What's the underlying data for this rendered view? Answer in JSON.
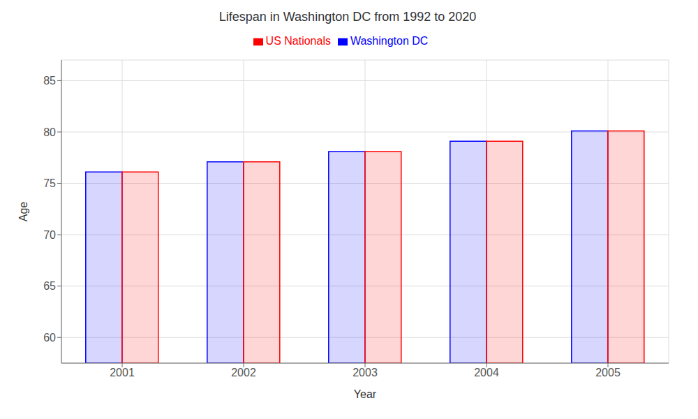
{
  "chart_data": {
    "type": "bar",
    "title": "Lifespan in Washington DC from 1992 to 2020",
    "x_label": "Year",
    "y_label": "Age",
    "categories": [
      "2001",
      "2002",
      "2003",
      "2004",
      "2005"
    ],
    "series": [
      {
        "name": "Washington DC",
        "color": "#0000ff",
        "values": [
          76.1,
          77.1,
          78.1,
          79.1,
          80.1
        ]
      },
      {
        "name": "US Nationals",
        "color": "#ff0000",
        "values": [
          76.1,
          77.1,
          78.1,
          79.1,
          80.1
        ]
      }
    ],
    "ylim": [
      57.5,
      87
    ],
    "yticks": [
      60,
      65,
      70,
      75,
      80,
      85
    ],
    "grid": true,
    "legend": "top"
  }
}
